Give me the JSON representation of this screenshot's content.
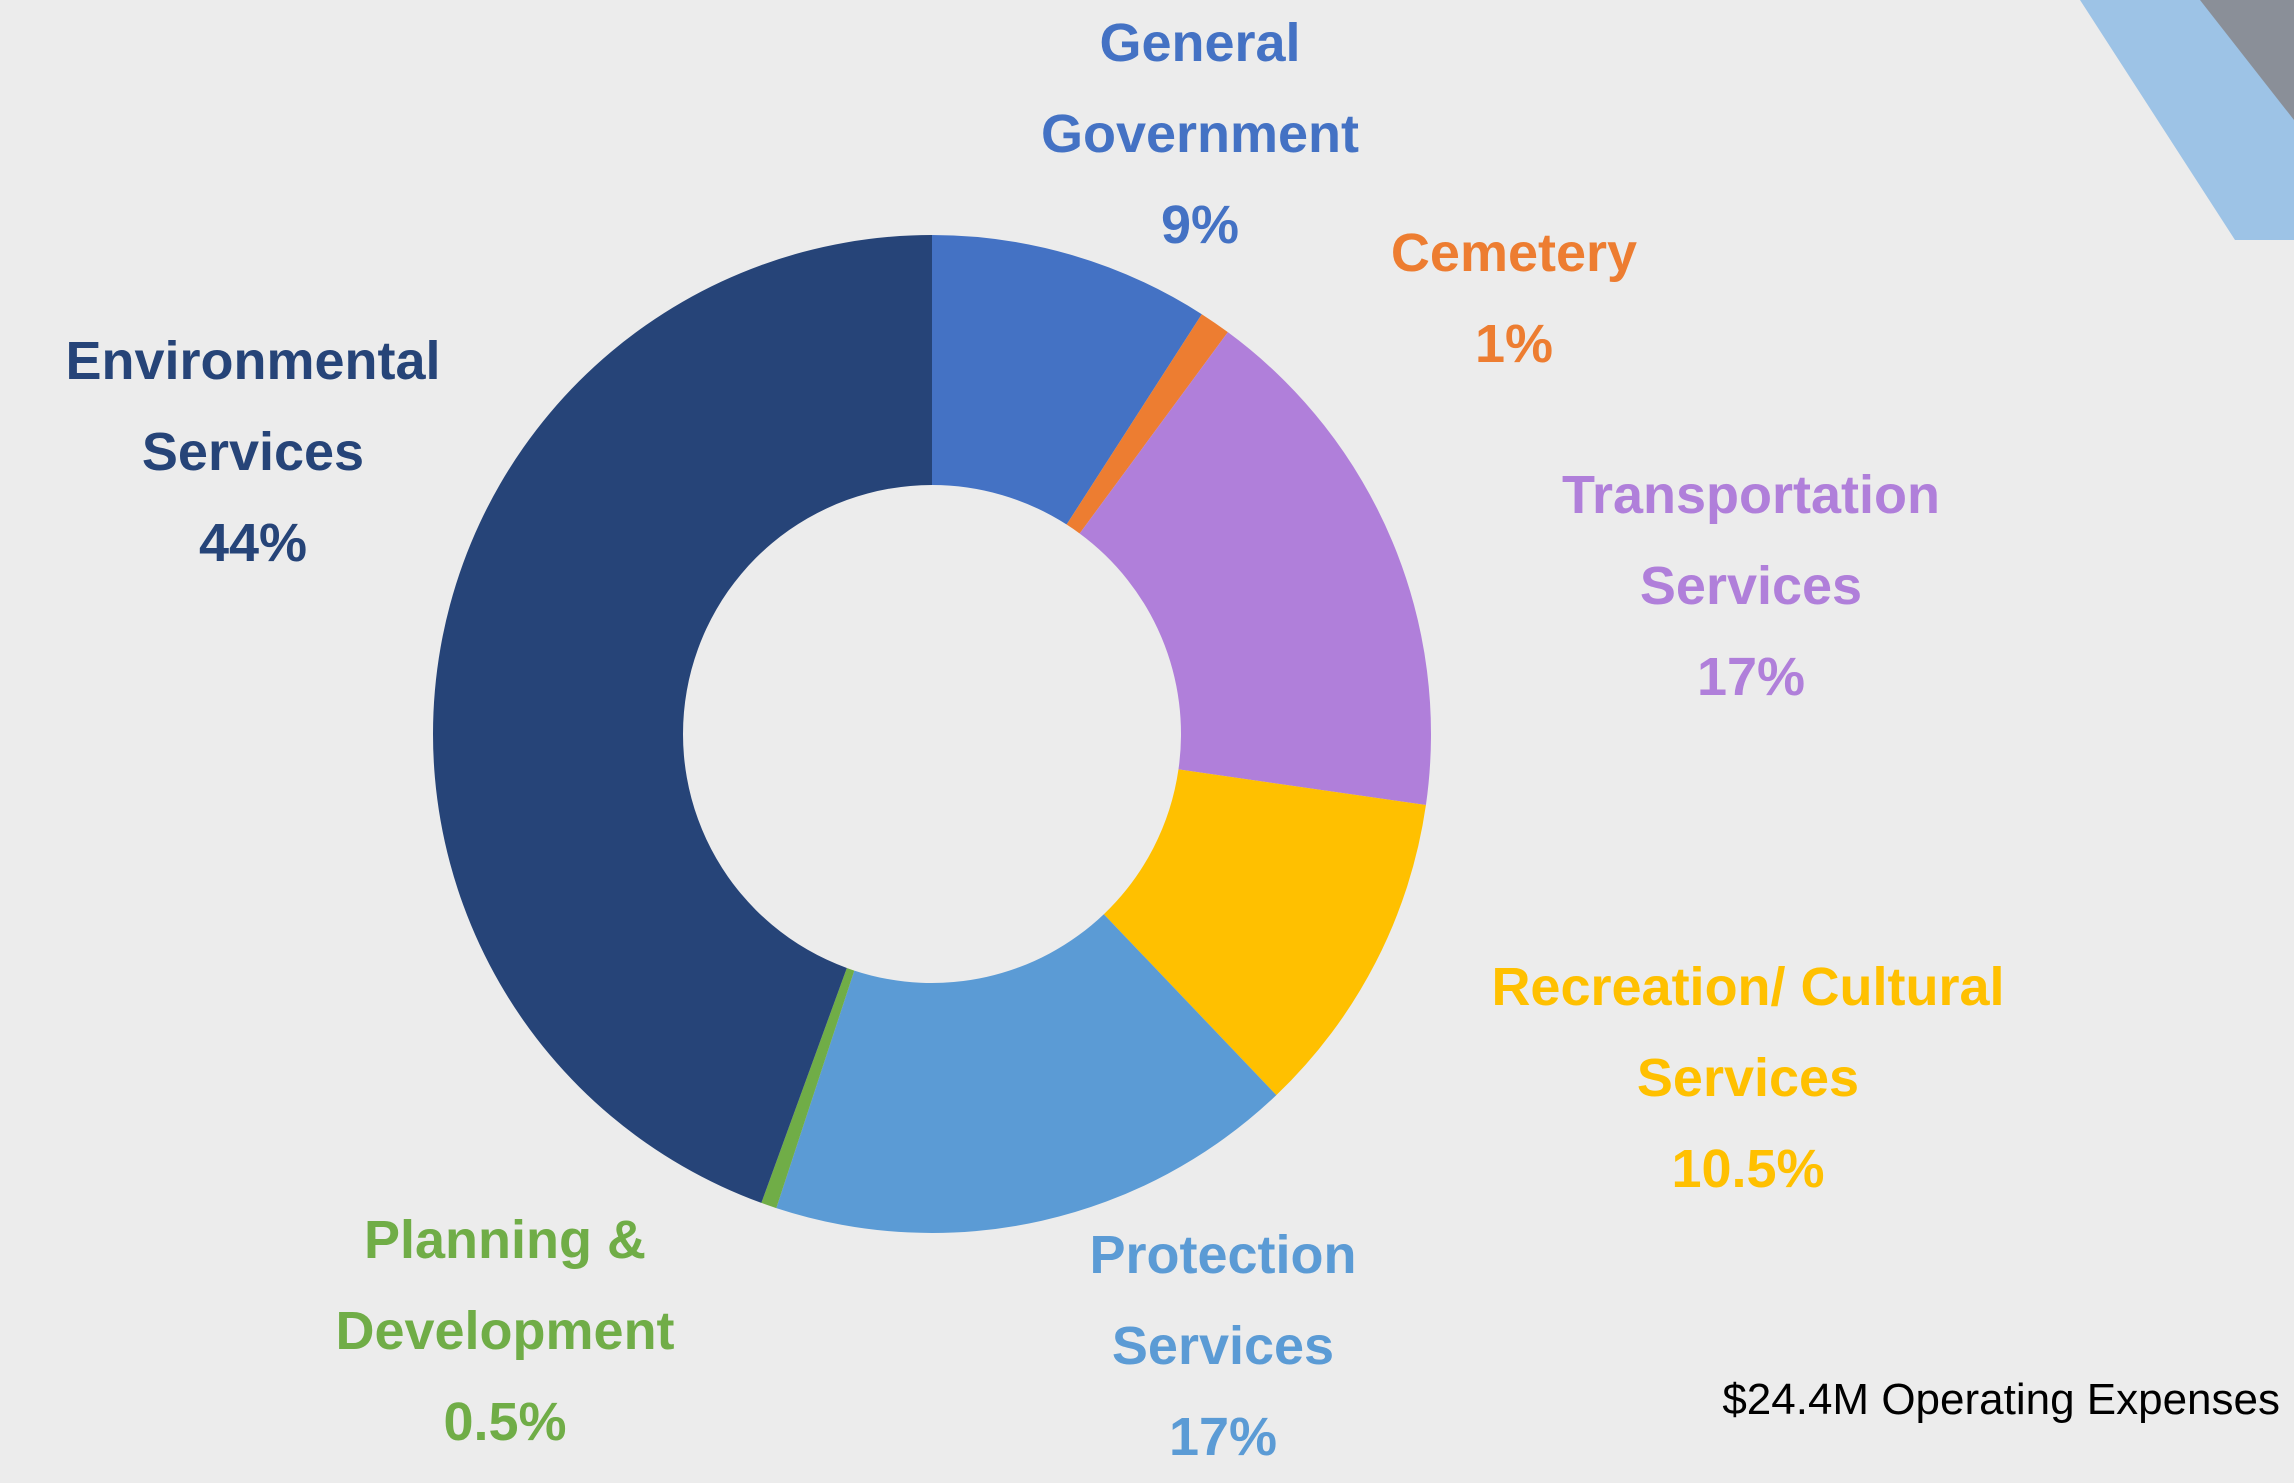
{
  "chart_data": {
    "type": "donut",
    "categories": [
      "General Government",
      "Cemetery",
      "Transportation Services",
      "Recreation/ Cultural Services",
      "Protection Services",
      "Planning & Development",
      "Environmental Services"
    ],
    "values": [
      9,
      1,
      17,
      10.5,
      17,
      0.5,
      44
    ],
    "value_labels": [
      "9%",
      "1%",
      "17%",
      "10.5%",
      "17%",
      "0.5%",
      "44%"
    ],
    "colors": [
      "#4472c4",
      "#ed7d31",
      "#b07fda",
      "#ffc000",
      "#5b9bd5",
      "#70ad47",
      "#264478"
    ],
    "note": "$24.4M Operating Expenses"
  }
}
